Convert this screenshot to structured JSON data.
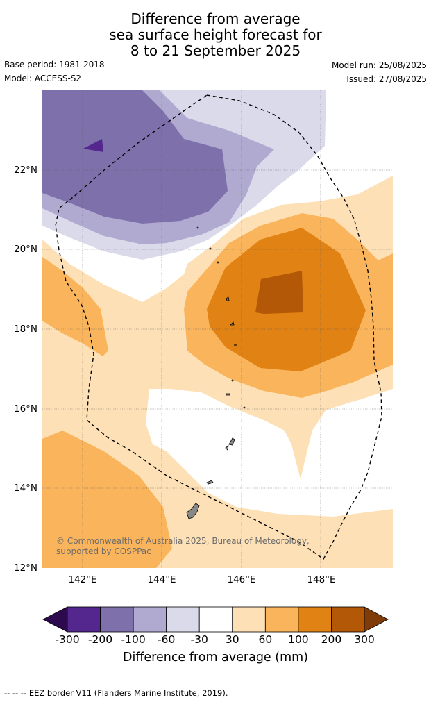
{
  "title_lines": [
    "Difference from average",
    "sea surface height forecast for",
    "8 to 21 September 2025"
  ],
  "meta": {
    "base_period": "Base period: 1981-2018",
    "model": "Model: ACCESS-S2",
    "model_run": "Model run: 25/08/2025",
    "issued": "Issued: 27/08/2025"
  },
  "map": {
    "lat_labels": [
      "22°N",
      "20°N",
      "18°N",
      "16°N",
      "14°N",
      "12°N"
    ],
    "lon_labels": [
      "142°E",
      "144°E",
      "146°E",
      "148°E"
    ],
    "copyright": "© Commonwealth of Australia 2025, Bureau of Meteorology, supported by COSPPac",
    "grid": true,
    "eez_border": "dashed black"
  },
  "colorbar": {
    "ticks": [
      "-300",
      "-200",
      "-100",
      "-60",
      "-30",
      "30",
      "60",
      "100",
      "200",
      "300"
    ],
    "label": "Difference from average (mm)",
    "colors": [
      "#2d0a4e",
      "#54278f",
      "#7e70ab",
      "#b0a9d0",
      "#dadaeb",
      "#ffffff",
      "#fde0b5",
      "#f9b45c",
      "#e08214",
      "#b35806",
      "#7f3b08"
    ]
  },
  "footer": "--  --  -- EEZ border V11 (Flanders Marine Institute, 2019)."
}
